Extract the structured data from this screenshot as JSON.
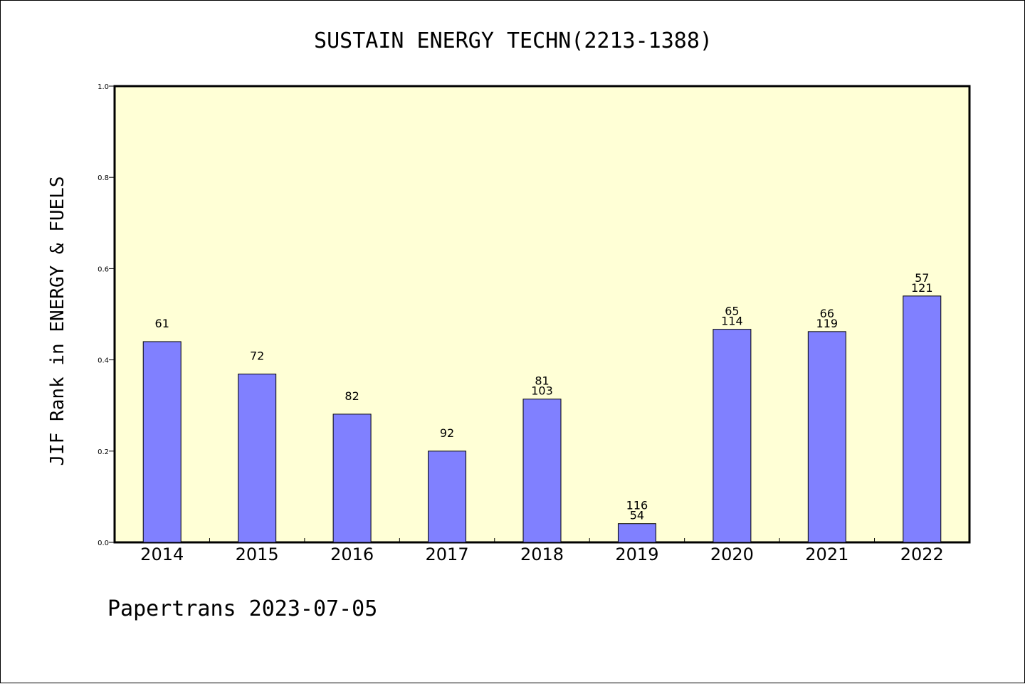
{
  "chart_data": {
    "type": "bar",
    "title": "SUSTAIN ENERGY TECHN(2213-1388)",
    "ylabel": "JIF Rank in ENERGY & FUELS",
    "xlabel": "",
    "ylim": [
      0,
      1.0
    ],
    "yticks": [
      "0.0",
      "0.2",
      "0.4",
      "0.6",
      "0.8",
      "1.0"
    ],
    "categories": [
      "2014",
      "2015",
      "2016",
      "2017",
      "2018",
      "2019",
      "2020",
      "2021",
      "2022"
    ],
    "values": [
      0.44,
      0.369,
      0.281,
      0.2,
      0.314,
      0.041,
      0.467,
      0.462,
      0.54
    ],
    "rank_labels": [
      "61",
      "72",
      "82",
      "92",
      "81",
      "54",
      "65",
      "66",
      "57"
    ],
    "total_labels": [
      "",
      "",
      "",
      "",
      "103",
      "116",
      "114",
      "119",
      "121"
    ],
    "plot_background": "#ffffd6",
    "bar_color": "#8080ff",
    "grid": false,
    "legend": "none"
  },
  "footer": "Papertrans 2023-07-05"
}
